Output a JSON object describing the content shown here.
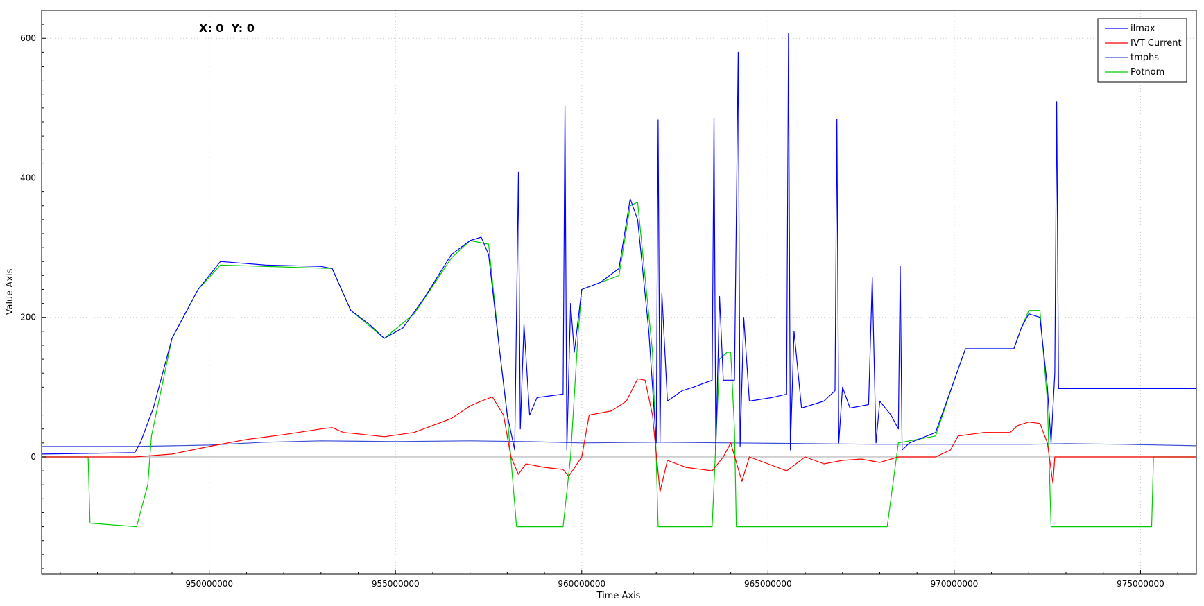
{
  "readout": "X: 0  Y: 0",
  "chart_data": {
    "type": "line",
    "title": "",
    "xlabel": "Time Axis",
    "ylabel": "Value Axis",
    "xlim": [
      945500000,
      976500000
    ],
    "ylim": [
      -168,
      640
    ],
    "x_ticks": [
      950000000,
      955000000,
      960000000,
      965000000,
      970000000,
      975000000
    ],
    "y_ticks": [
      0,
      200,
      400,
      600
    ],
    "grid": true,
    "legend_position": "top-right",
    "series": [
      {
        "name": "ilmax",
        "color": "#0000ff",
        "points": [
          [
            945500000,
            4
          ],
          [
            948000000,
            6
          ],
          [
            948150000,
            20
          ],
          [
            948500000,
            70
          ],
          [
            949000000,
            170
          ],
          [
            949700000,
            240
          ],
          [
            950300000,
            280
          ],
          [
            951500000,
            275
          ],
          [
            953000000,
            273
          ],
          [
            953300000,
            270
          ],
          [
            953800000,
            210
          ],
          [
            954300000,
            190
          ],
          [
            954700000,
            170
          ],
          [
            955200000,
            185
          ],
          [
            955800000,
            230
          ],
          [
            956500000,
            290
          ],
          [
            957000000,
            310
          ],
          [
            957300000,
            315
          ],
          [
            957500000,
            290
          ],
          [
            957800000,
            150
          ],
          [
            958000000,
            60
          ],
          [
            958200000,
            10
          ],
          [
            958300000,
            408
          ],
          [
            958350000,
            40
          ],
          [
            958450000,
            190
          ],
          [
            958600000,
            60
          ],
          [
            958800000,
            85
          ],
          [
            959500000,
            90
          ],
          [
            959550000,
            503
          ],
          [
            959600000,
            10
          ],
          [
            959700000,
            220
          ],
          [
            959800000,
            150
          ],
          [
            960000000,
            240
          ],
          [
            960500000,
            250
          ],
          [
            961000000,
            270
          ],
          [
            961300000,
            370
          ],
          [
            961500000,
            340
          ],
          [
            961800000,
            180
          ],
          [
            962000000,
            20
          ],
          [
            962050000,
            483
          ],
          [
            962100000,
            20
          ],
          [
            962150000,
            235
          ],
          [
            962300000,
            80
          ],
          [
            962700000,
            95
          ],
          [
            963000000,
            100
          ],
          [
            963500000,
            110
          ],
          [
            963550000,
            486
          ],
          [
            963600000,
            10
          ],
          [
            963700000,
            230
          ],
          [
            963800000,
            110
          ],
          [
            964100000,
            110
          ],
          [
            964200000,
            580
          ],
          [
            964250000,
            15
          ],
          [
            964350000,
            200
          ],
          [
            964500000,
            80
          ],
          [
            965100000,
            85
          ],
          [
            965500000,
            90
          ],
          [
            965550000,
            607
          ],
          [
            965600000,
            10
          ],
          [
            965700000,
            180
          ],
          [
            965900000,
            70
          ],
          [
            966500000,
            80
          ],
          [
            966800000,
            95
          ],
          [
            966850000,
            484
          ],
          [
            966900000,
            20
          ],
          [
            967000000,
            100
          ],
          [
            967200000,
            70
          ],
          [
            967700000,
            75
          ],
          [
            967800000,
            257
          ],
          [
            967900000,
            20
          ],
          [
            968000000,
            80
          ],
          [
            968300000,
            60
          ],
          [
            968500000,
            40
          ],
          [
            968550000,
            273
          ],
          [
            968600000,
            10
          ],
          [
            968800000,
            20
          ],
          [
            969500000,
            35
          ],
          [
            970000000,
            110
          ],
          [
            970300000,
            155
          ],
          [
            971000000,
            155
          ],
          [
            971600000,
            155
          ],
          [
            971800000,
            185
          ],
          [
            972000000,
            205
          ],
          [
            972300000,
            200
          ],
          [
            972500000,
            100
          ],
          [
            972600000,
            20
          ],
          [
            972700000,
            120
          ],
          [
            972750000,
            509
          ],
          [
            972800000,
            98
          ],
          [
            976500000,
            98
          ]
        ]
      },
      {
        "name": "IVT Current",
        "color": "#ff0000",
        "points": [
          [
            945500000,
            0
          ],
          [
            948000000,
            0
          ],
          [
            949000000,
            4
          ],
          [
            950000000,
            15
          ],
          [
            951000000,
            25
          ],
          [
            952000000,
            32
          ],
          [
            953000000,
            40
          ],
          [
            953300000,
            42
          ],
          [
            953600000,
            35
          ],
          [
            954000000,
            33
          ],
          [
            954700000,
            29
          ],
          [
            955500000,
            35
          ],
          [
            956000000,
            45
          ],
          [
            956500000,
            55
          ],
          [
            957000000,
            73
          ],
          [
            957300000,
            80
          ],
          [
            957600000,
            86
          ],
          [
            957900000,
            60
          ],
          [
            958100000,
            0
          ],
          [
            958300000,
            -25
          ],
          [
            958500000,
            -10
          ],
          [
            959000000,
            -15
          ],
          [
            959500000,
            -18
          ],
          [
            959650000,
            -28
          ],
          [
            960000000,
            0
          ],
          [
            960200000,
            60
          ],
          [
            960800000,
            66
          ],
          [
            961200000,
            80
          ],
          [
            961500000,
            112
          ],
          [
            961700000,
            110
          ],
          [
            961900000,
            60
          ],
          [
            962100000,
            -50
          ],
          [
            962300000,
            -5
          ],
          [
            962800000,
            -15
          ],
          [
            963500000,
            -20
          ],
          [
            963800000,
            0
          ],
          [
            964000000,
            20
          ],
          [
            964300000,
            -35
          ],
          [
            964500000,
            0
          ],
          [
            965000000,
            -10
          ],
          [
            965500000,
            -20
          ],
          [
            966000000,
            0
          ],
          [
            966500000,
            -10
          ],
          [
            967000000,
            -5
          ],
          [
            967500000,
            -3
          ],
          [
            968000000,
            -8
          ],
          [
            968500000,
            0
          ],
          [
            969500000,
            0
          ],
          [
            969900000,
            10
          ],
          [
            970100000,
            30
          ],
          [
            970800000,
            35
          ],
          [
            971500000,
            35
          ],
          [
            971700000,
            45
          ],
          [
            972000000,
            50
          ],
          [
            972300000,
            48
          ],
          [
            972500000,
            20
          ],
          [
            972650000,
            -38
          ],
          [
            972700000,
            0
          ],
          [
            976500000,
            0
          ]
        ]
      },
      {
        "name": "tmphs",
        "color": "#3a4fd6",
        "points": [
          [
            945500000,
            15
          ],
          [
            948000000,
            15
          ],
          [
            950000000,
            17
          ],
          [
            951500000,
            21
          ],
          [
            953000000,
            23
          ],
          [
            955000000,
            22
          ],
          [
            957000000,
            23
          ],
          [
            958500000,
            22
          ],
          [
            960000000,
            20
          ],
          [
            962000000,
            21
          ],
          [
            964000000,
            20
          ],
          [
            966000000,
            19
          ],
          [
            968000000,
            18
          ],
          [
            970000000,
            18
          ],
          [
            972000000,
            18
          ],
          [
            973000000,
            19
          ],
          [
            974500000,
            18
          ],
          [
            976500000,
            16
          ]
        ]
      },
      {
        "name": "Potnom",
        "color": "#00cc00",
        "points": [
          [
            945500000,
            0
          ],
          [
            946750000,
            0
          ],
          [
            946800000,
            -95
          ],
          [
            948050000,
            -100
          ],
          [
            948350000,
            -40
          ],
          [
            948450000,
            30
          ],
          [
            949000000,
            170
          ],
          [
            949700000,
            240
          ],
          [
            950300000,
            275
          ],
          [
            953300000,
            270
          ],
          [
            953800000,
            210
          ],
          [
            954700000,
            170
          ],
          [
            955500000,
            205
          ],
          [
            956500000,
            285
          ],
          [
            957000000,
            310
          ],
          [
            957500000,
            305
          ],
          [
            957800000,
            150
          ],
          [
            958000000,
            60
          ],
          [
            958250000,
            -100
          ],
          [
            959500000,
            -100
          ],
          [
            959700000,
            0
          ],
          [
            959900000,
            175
          ],
          [
            960000000,
            240
          ],
          [
            961000000,
            260
          ],
          [
            961300000,
            360
          ],
          [
            961500000,
            365
          ],
          [
            961900000,
            150
          ],
          [
            962000000,
            0
          ],
          [
            962050000,
            -100
          ],
          [
            963500000,
            -100
          ],
          [
            963700000,
            140
          ],
          [
            963900000,
            150
          ],
          [
            964000000,
            150
          ],
          [
            964100000,
            40
          ],
          [
            964150000,
            -100
          ],
          [
            968200000,
            -100
          ],
          [
            968300000,
            -60
          ],
          [
            968500000,
            20
          ],
          [
            969500000,
            30
          ],
          [
            970000000,
            110
          ],
          [
            970300000,
            155
          ],
          [
            971600000,
            155
          ],
          [
            971800000,
            185
          ],
          [
            972000000,
            210
          ],
          [
            972300000,
            210
          ],
          [
            972500000,
            80
          ],
          [
            972600000,
            -100
          ],
          [
            975300000,
            -100
          ],
          [
            975350000,
            0
          ],
          [
            976500000,
            0
          ]
        ]
      }
    ]
  }
}
